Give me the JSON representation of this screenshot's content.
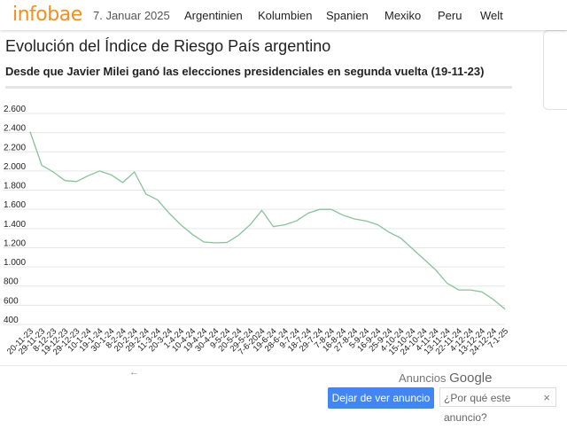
{
  "header": {
    "logo": "infobae",
    "date": "7. Januar 2025",
    "nav": [
      {
        "label": "Argentinien"
      },
      {
        "label": "Kolumbien"
      },
      {
        "label": "Spanien"
      },
      {
        "label": "Mexiko"
      },
      {
        "label": "Peru"
      },
      {
        "label": "Welt"
      }
    ]
  },
  "article": {
    "title": "Evolución del Índice de Riesgo País argentino",
    "subtitle": "Desde que Javier Milei ganó las elecciones presidenciales en segunda vuelta (19-11-23)"
  },
  "chart_data": {
    "type": "line",
    "title": "",
    "xlabel": "",
    "ylabel": "",
    "ylim": [
      400,
      2600
    ],
    "yticks": [
      "2.600",
      "2.400",
      "2.200",
      "2.000",
      "1.800",
      "1.600",
      "1.400",
      "1.200",
      "1.000",
      "800",
      "600",
      "400"
    ],
    "grid": true,
    "line_color": "#86c39a",
    "x": [
      "20-11-23",
      "29-11-23",
      "8-12-23",
      "19-12-23",
      "29-12-23",
      "10-1-24",
      "19-1-24",
      "30-1-24",
      "8-2-24",
      "20-2-24",
      "29-2-24",
      "11-3-24",
      "20-3-24",
      "1-4-24",
      "10-4-24",
      "19-4-24",
      "30-4-24",
      "9-5-24",
      "20-5-24",
      "29-5-24",
      "7-6-2024",
      "19-6-24",
      "28-6-24",
      "9-7-24",
      "18-7-24",
      "29-7-24",
      "7-8-24",
      "16-8-24",
      "27-8-24",
      "5-9-24",
      "16-9-24",
      "25-9-24",
      "4-10-24",
      "15-10-24",
      "24-10-24",
      "4-11-24",
      "13-11-24",
      "22-11-24",
      "4-12-24",
      "13-12-24",
      "24-12-24",
      "7-1-25"
    ],
    "series": [
      {
        "values": [
          2410,
          2060,
          1990,
          1900,
          1890,
          1950,
          2000,
          1960,
          1880,
          1990,
          1760,
          1700,
          1560,
          1440,
          1340,
          1260,
          1250,
          1255,
          1330,
          1440,
          1590,
          1420,
          1440,
          1480,
          1560,
          1600,
          1600,
          1540,
          1500,
          1480,
          1440,
          1360,
          1300,
          1190,
          1080,
          970,
          830,
          760,
          760,
          740,
          660,
          560
        ]
      }
    ]
  },
  "ad": {
    "back_arrow": "←",
    "label_prefix": "Anuncios",
    "label_brand": "Google",
    "stop_button": "Dejar de ver anuncio",
    "why_button": "¿Por qué este anuncio?",
    "why_icon": "×"
  }
}
